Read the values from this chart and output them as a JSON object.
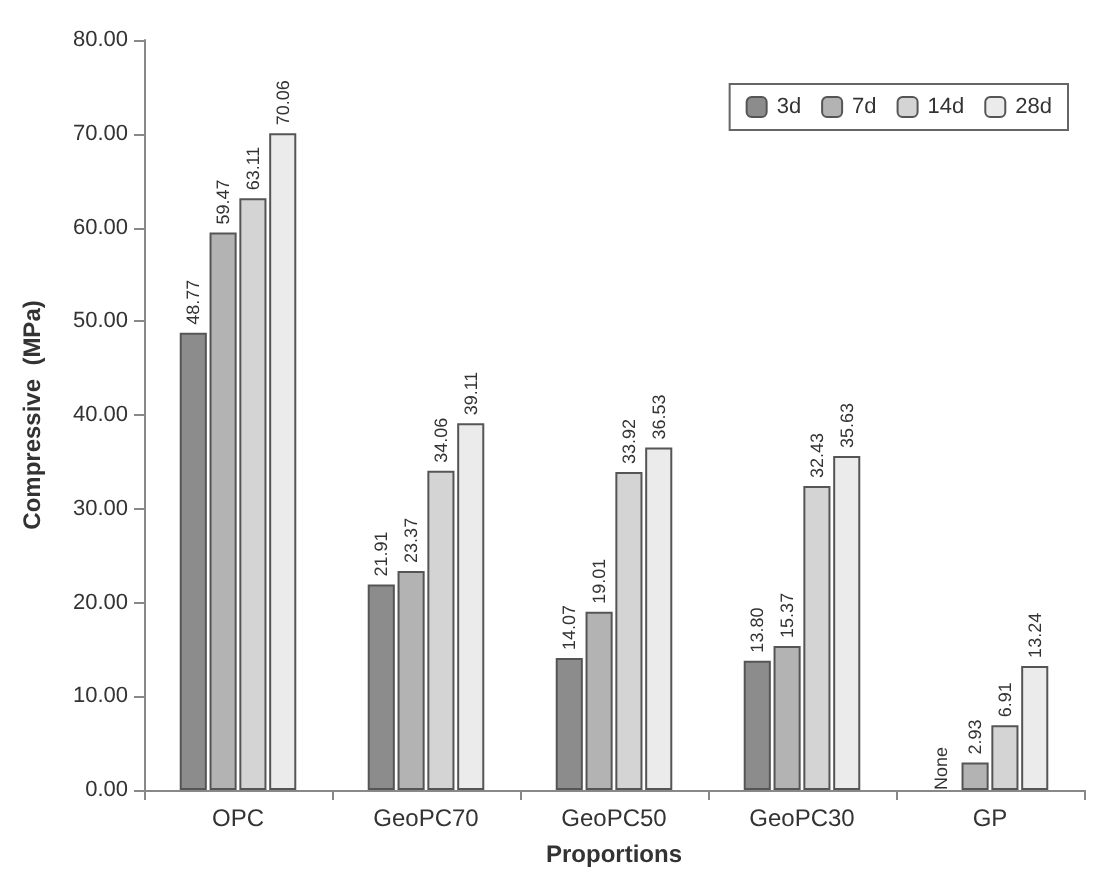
{
  "chart_data": {
    "type": "bar",
    "xlabel": "Proportions",
    "ylabel": "Compressive  (MPa)",
    "categories": [
      "OPC",
      "GeoPC70",
      "GeoPC50",
      "GeoPC30",
      "GP"
    ],
    "series": [
      {
        "name": "3d",
        "color": "#8c8c8c",
        "values": [
          48.77,
          21.91,
          14.07,
          13.8,
          null
        ],
        "value_labels": [
          "48.77",
          "21.91",
          "14.07",
          "13.80",
          "None"
        ]
      },
      {
        "name": "7d",
        "color": "#b3b3b3",
        "values": [
          59.47,
          23.37,
          19.01,
          15.37,
          2.93
        ],
        "value_labels": [
          "59.47",
          "23.37",
          "19.01",
          "15.37",
          "2.93"
        ]
      },
      {
        "name": "14d",
        "color": "#d4d4d4",
        "values": [
          63.11,
          34.06,
          33.92,
          32.43,
          6.91
        ],
        "value_labels": [
          "63.11",
          "34.06",
          "33.92",
          "32.43",
          "6.91"
        ]
      },
      {
        "name": "28d",
        "color": "#ebebeb",
        "values": [
          70.06,
          39.11,
          36.53,
          35.63,
          13.24
        ],
        "value_labels": [
          "70.06",
          "39.11",
          "36.53",
          "35.63",
          "13.24"
        ]
      }
    ],
    "ylim": [
      0,
      80
    ],
    "yticks": [
      {
        "value": 0,
        "label": "0.00"
      },
      {
        "value": 10,
        "label": "10.00"
      },
      {
        "value": 20,
        "label": "20.00"
      },
      {
        "value": 30,
        "label": "30.00"
      },
      {
        "value": 40,
        "label": "40.00"
      },
      {
        "value": 50,
        "label": "50.00"
      },
      {
        "value": 60,
        "label": "60.00"
      },
      {
        "value": 70,
        "label": "70.00"
      },
      {
        "value": 80,
        "label": "80.00"
      }
    ],
    "grid": false,
    "legend": "top right"
  }
}
